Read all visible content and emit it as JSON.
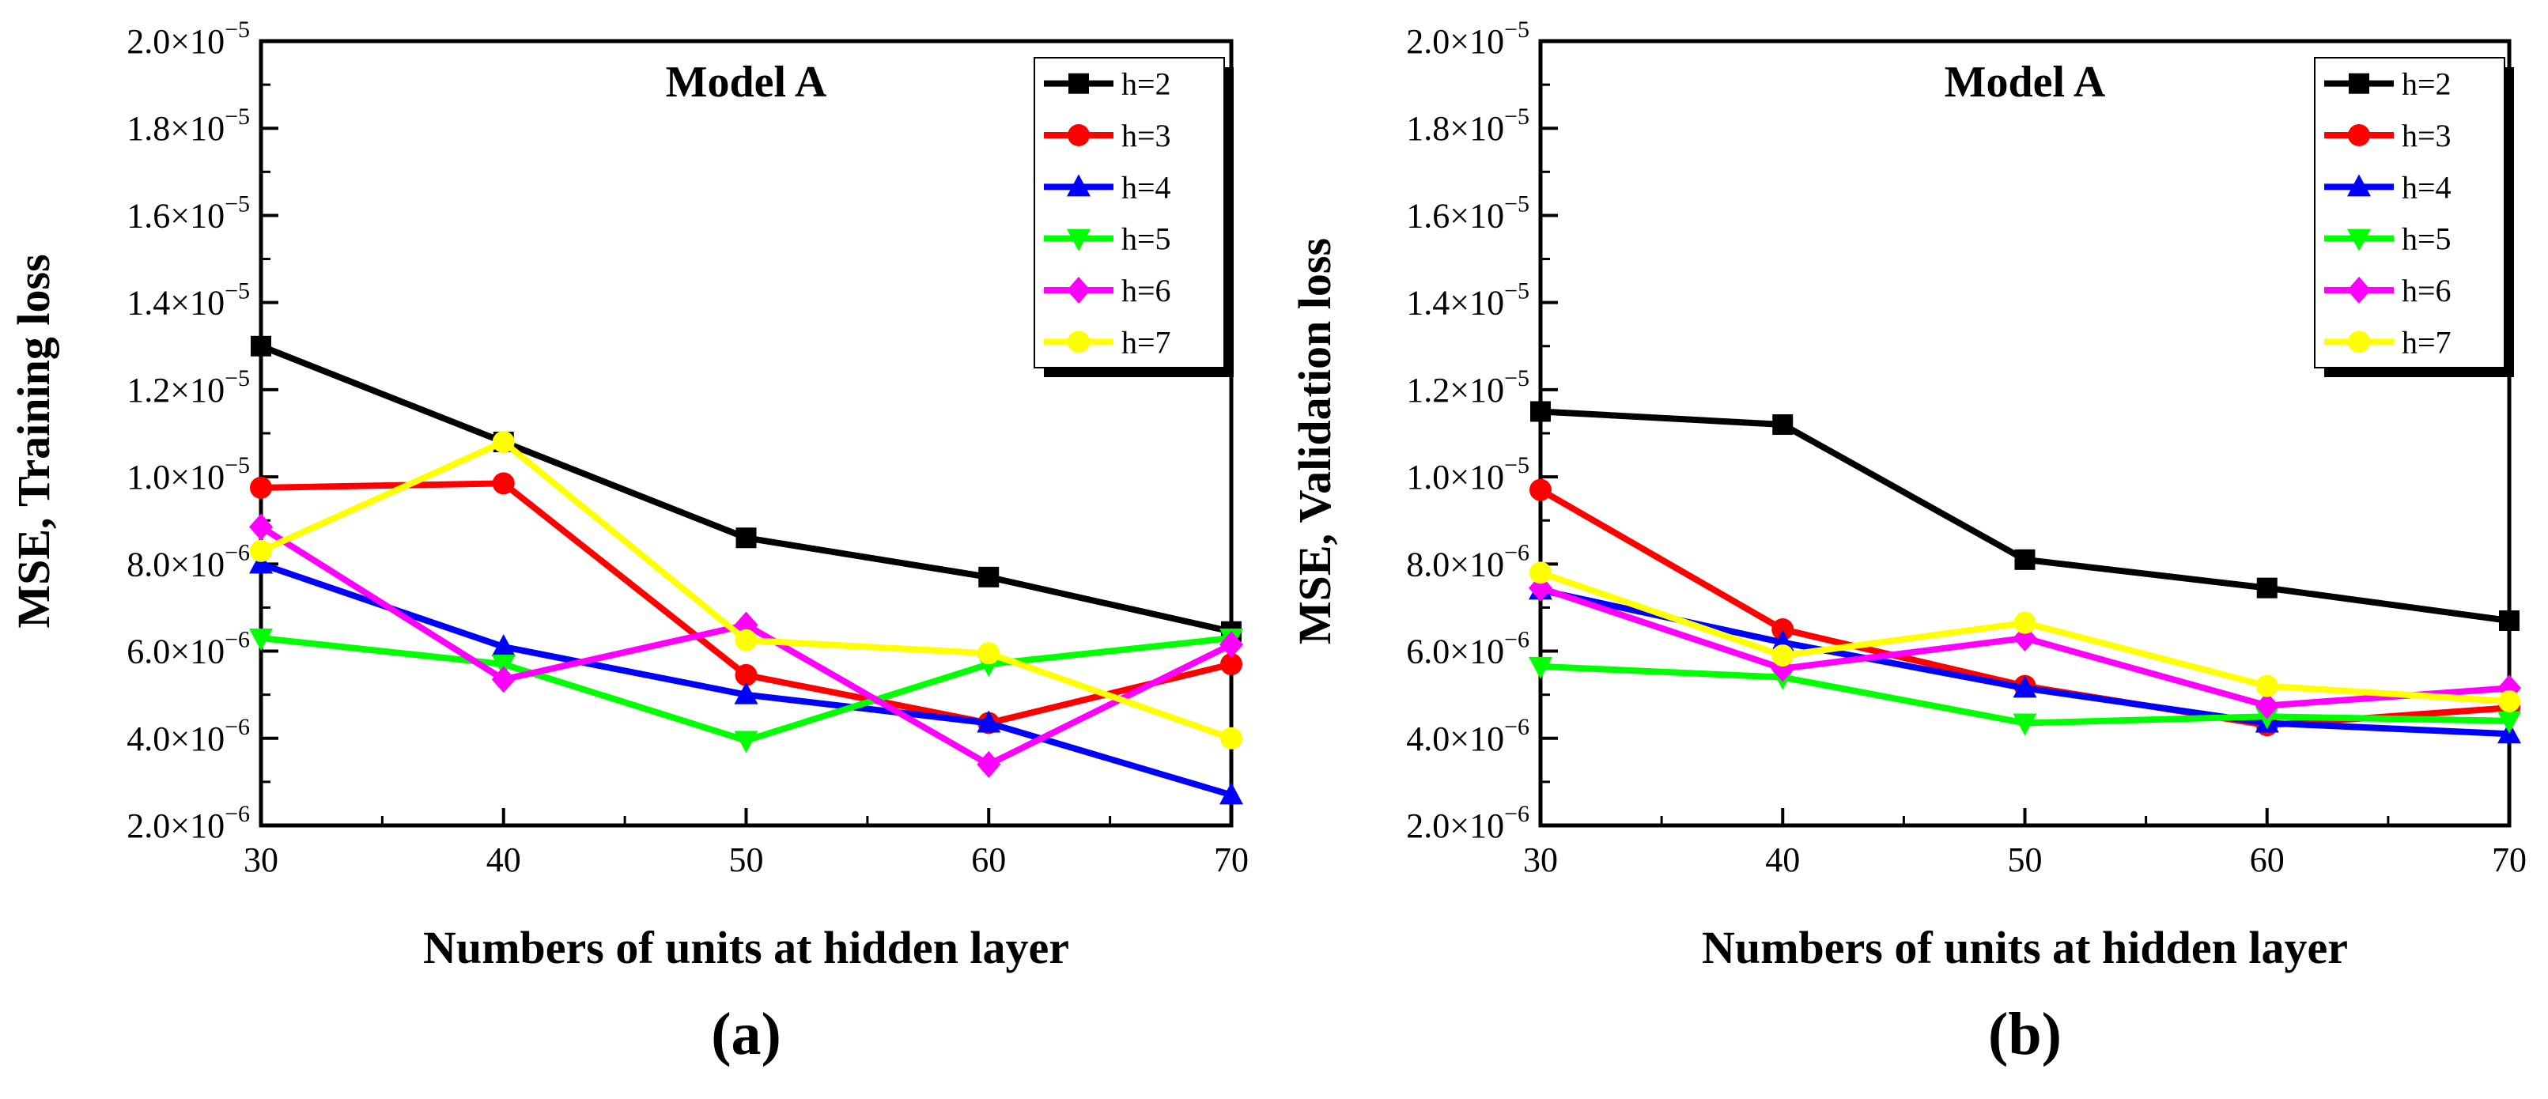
{
  "chart_data": [
    {
      "type": "line",
      "id": "a",
      "panel_label": "(a)",
      "title": "Model A",
      "xlabel": "Numbers of units at hidden layer",
      "ylabel": "MSE,  Training loss",
      "xlim": [
        30,
        70
      ],
      "ylim": [
        2e-06,
        2e-05
      ],
      "x_ticks": [
        30,
        40,
        50,
        60,
        70
      ],
      "x_tick_labels": [
        "30",
        "40",
        "50",
        "60",
        "70"
      ],
      "y_ticks": [
        2e-06,
        4e-06,
        6e-06,
        8e-06,
        1e-05,
        1.2e-05,
        1.4e-05,
        1.6e-05,
        1.8e-05,
        2e-05
      ],
      "y_tick_labels": [
        {
          "mant": "2.0×10",
          "exp": "−6"
        },
        {
          "mant": "4.0×10",
          "exp": "−6"
        },
        {
          "mant": "6.0×10",
          "exp": "−6"
        },
        {
          "mant": "8.0×10",
          "exp": "−6"
        },
        {
          "mant": "1.0×10",
          "exp": "−5"
        },
        {
          "mant": "1.2×10",
          "exp": "−5"
        },
        {
          "mant": "1.4×10",
          "exp": "−5"
        },
        {
          "mant": "1.6×10",
          "exp": "−5"
        },
        {
          "mant": "1.8×10",
          "exp": "−5"
        },
        {
          "mant": "2.0×10",
          "exp": "−5"
        }
      ],
      "legend_position": "top-right",
      "x": [
        30,
        40,
        50,
        60,
        70
      ],
      "series": [
        {
          "name": "h=2",
          "color": "#000000",
          "marker": "square",
          "values": [
            1.3e-05,
            1.08e-05,
            8.6e-06,
            7.7e-06,
            6.45e-06
          ]
        },
        {
          "name": "h=3",
          "color": "#ff0000",
          "marker": "circle",
          "values": [
            9.75e-06,
            9.85e-06,
            5.45e-06,
            4.35e-06,
            5.7e-06
          ]
        },
        {
          "name": "h=4",
          "color": "#0000ff",
          "marker": "triangle-up",
          "values": [
            8e-06,
            6.1e-06,
            5e-06,
            4.35e-06,
            2.7e-06
          ]
        },
        {
          "name": "h=5",
          "color": "#00ff00",
          "marker": "triangle-down",
          "values": [
            6.3e-06,
            5.7e-06,
            3.95e-06,
            5.7e-06,
            6.3e-06
          ]
        },
        {
          "name": "h=6",
          "color": "#ff00ff",
          "marker": "diamond",
          "values": [
            8.85e-06,
            5.35e-06,
            6.6e-06,
            3.4e-06,
            6.15e-06
          ]
        },
        {
          "name": "h=7",
          "color": "#ffff00",
          "marker": "circle",
          "values": [
            8.3e-06,
            1.08e-05,
            6.25e-06,
            5.95e-06,
            4e-06
          ]
        }
      ]
    },
    {
      "type": "line",
      "id": "b",
      "panel_label": "(b)",
      "title": "Model A",
      "xlabel": "Numbers of units at hidden layer",
      "ylabel": "MSE,  Validation loss",
      "xlim": [
        30,
        70
      ],
      "ylim": [
        2e-06,
        2e-05
      ],
      "x_ticks": [
        30,
        40,
        50,
        60,
        70
      ],
      "x_tick_labels": [
        "30",
        "40",
        "50",
        "60",
        "70"
      ],
      "y_ticks": [
        2e-06,
        4e-06,
        6e-06,
        8e-06,
        1e-05,
        1.2e-05,
        1.4e-05,
        1.6e-05,
        1.8e-05,
        2e-05
      ],
      "y_tick_labels": [
        {
          "mant": "2.0×10",
          "exp": "−6"
        },
        {
          "mant": "4.0×10",
          "exp": "−6"
        },
        {
          "mant": "6.0×10",
          "exp": "−6"
        },
        {
          "mant": "8.0×10",
          "exp": "−6"
        },
        {
          "mant": "1.0×10",
          "exp": "−5"
        },
        {
          "mant": "1.2×10",
          "exp": "−5"
        },
        {
          "mant": "1.4×10",
          "exp": "−5"
        },
        {
          "mant": "1.6×10",
          "exp": "−5"
        },
        {
          "mant": "1.8×10",
          "exp": "−5"
        },
        {
          "mant": "2.0×10",
          "exp": "−5"
        }
      ],
      "legend_position": "top-right",
      "x": [
        30,
        40,
        50,
        60,
        70
      ],
      "series": [
        {
          "name": "h=2",
          "color": "#000000",
          "marker": "square",
          "values": [
            1.15e-05,
            1.12e-05,
            8.1e-06,
            7.45e-06,
            6.7e-06
          ]
        },
        {
          "name": "h=3",
          "color": "#ff0000",
          "marker": "circle",
          "values": [
            9.7e-06,
            6.5e-06,
            5.2e-06,
            4.3e-06,
            4.7e-06
          ]
        },
        {
          "name": "h=4",
          "color": "#0000ff",
          "marker": "triangle-up",
          "values": [
            7.4e-06,
            6.2e-06,
            5.15e-06,
            4.35e-06,
            4.1e-06
          ]
        },
        {
          "name": "h=5",
          "color": "#00ff00",
          "marker": "triangle-down",
          "values": [
            5.65e-06,
            5.4e-06,
            4.35e-06,
            4.5e-06,
            4.4e-06
          ]
        },
        {
          "name": "h=6",
          "color": "#ff00ff",
          "marker": "diamond",
          "values": [
            7.45e-06,
            5.6e-06,
            6.3e-06,
            4.75e-06,
            5.15e-06
          ]
        },
        {
          "name": "h=7",
          "color": "#ffff00",
          "marker": "circle",
          "values": [
            7.8e-06,
            5.9e-06,
            6.65e-06,
            5.2e-06,
            4.85e-06
          ]
        }
      ]
    }
  ]
}
